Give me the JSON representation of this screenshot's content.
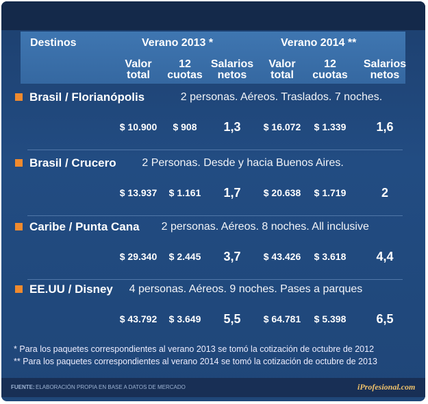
{
  "header": {
    "destinations": "Destinos",
    "groups": [
      "Verano 2013 *",
      "Verano 2014 **"
    ],
    "columns": [
      "Valor total",
      "12 cuotas",
      "Salarios netos",
      "Valor total",
      "12 cuotas",
      "Salarios netos"
    ]
  },
  "rows": [
    {
      "destination": "Brasil / Florianópolis",
      "description": "2 personas. Aéreos. Traslados. 7 noches.",
      "values": [
        "$ 10.900",
        "$ 908",
        "1,3",
        "$ 16.072",
        "$ 1.339",
        "1,6"
      ]
    },
    {
      "destination": "Brasil / Crucero",
      "description": "2 Personas. Desde y hacia Buenos Aires.",
      "values": [
        "$ 13.937",
        "$ 1.161",
        "1,7",
        "$ 20.638",
        "$ 1.719",
        "2"
      ]
    },
    {
      "destination": "Caribe / Punta Cana",
      "description": "2 personas. Aéreos. 8 noches. All inclusive",
      "values": [
        "$ 29.340",
        "$ 2.445",
        "3,7",
        "$ 43.426",
        "$ 3.618",
        "4,4"
      ]
    },
    {
      "destination": "EE.UU / Disney",
      "description": "4 personas. Aéreos. 9 noches. Pases a parques",
      "values": [
        "$ 43.792",
        "$ 3.649",
        "5,5",
        "$ 64.781",
        "$ 5.398",
        "6,5"
      ]
    }
  ],
  "notes": [
    "* Para los paquetes correspondientes al verano 2013 se tomó la cotización de octubre de 2012",
    "** Para los paquetes correspondientes al verano 2014 se tomó la cotización de octubre de 2013"
  ],
  "footer": {
    "source_label": "FUENTE:",
    "source": "ELABORACIÓN PROPIA EN BASE A DATOS DE MERCADO",
    "brand": "iProfesional.com"
  }
}
